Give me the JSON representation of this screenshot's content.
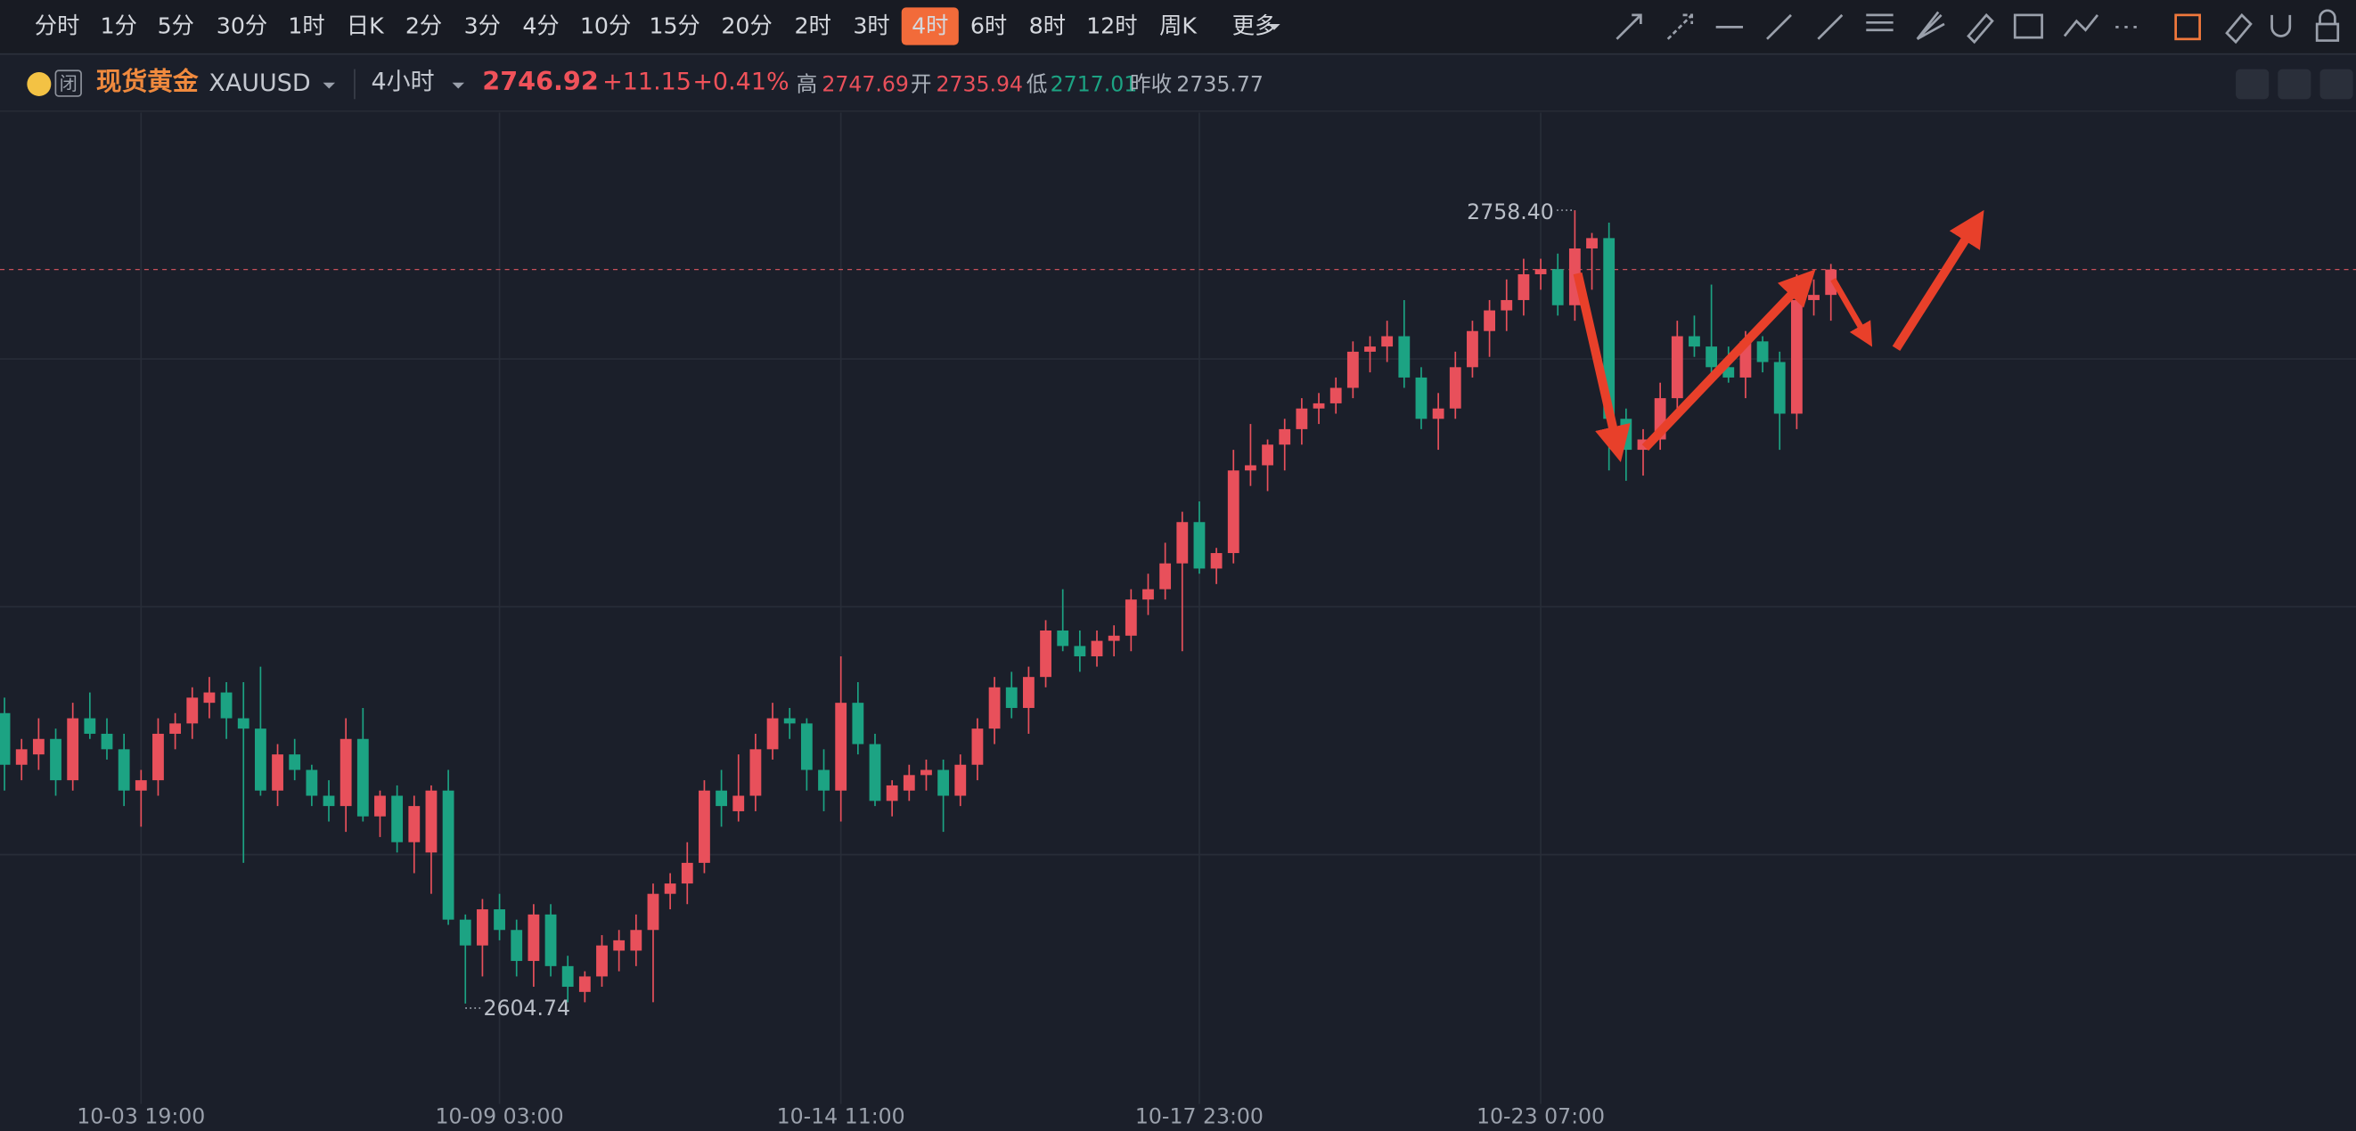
{
  "toolbar": {
    "periods": [
      {
        "label": "分时"
      },
      {
        "label": "1分"
      },
      {
        "label": "5分"
      },
      {
        "label": "30分"
      },
      {
        "label": "1时"
      },
      {
        "label": "日K"
      },
      {
        "label": "2分"
      },
      {
        "label": "3分"
      },
      {
        "label": "4分"
      },
      {
        "label": "10分"
      },
      {
        "label": "15分"
      },
      {
        "label": "20分"
      },
      {
        "label": "2时"
      },
      {
        "label": "3时"
      },
      {
        "label": "4时",
        "active": true
      },
      {
        "label": "6时"
      },
      {
        "label": "8时"
      },
      {
        "label": "12时"
      },
      {
        "label": "周K"
      }
    ],
    "more": "更多"
  },
  "header": {
    "market_status": "闭",
    "name": "现货黄金",
    "symbol": "XAUUSD",
    "period": "4小时",
    "price": "2746.92",
    "change": "+11.15",
    "change_pct": "+0.41%",
    "high_label": "高",
    "high": "2747.69",
    "open_label": "开",
    "open": "2735.94",
    "low_label": "低",
    "low": "2717.01",
    "prev_close_label": "昨收",
    "prev_close": "2735.77"
  },
  "chart_data": {
    "type": "candlestick",
    "up_color": "#e8505b",
    "down_color": "#1ca383",
    "grid": true,
    "ylim": [
      2585.3,
      2777.3
    ],
    "ygrid": [
      2729.6,
      2681.6,
      2633.6
    ],
    "categories": [
      null,
      null,
      null,
      null,
      null,
      null,
      null,
      null,
      "10-03 19:00",
      null,
      null,
      null,
      null,
      null,
      null,
      null,
      null,
      null,
      null,
      null,
      null,
      null,
      null,
      null,
      null,
      null,
      null,
      null,
      null,
      "10-09 03:00",
      null,
      null,
      null,
      null,
      null,
      null,
      null,
      null,
      null,
      null,
      null,
      null,
      null,
      null,
      null,
      null,
      null,
      null,
      null,
      "10-14 11:00",
      null,
      null,
      null,
      null,
      null,
      null,
      null,
      null,
      null,
      null,
      null,
      null,
      null,
      null,
      null,
      null,
      null,
      null,
      null,
      null,
      "10-17 23:00",
      null,
      null,
      null,
      null,
      null,
      null,
      null,
      null,
      null,
      null,
      null,
      null,
      null,
      null,
      null,
      null,
      null,
      null,
      null,
      "10-23 07:00",
      null,
      null,
      null,
      null,
      null,
      null,
      null,
      null,
      null,
      null,
      null,
      null,
      null,
      null,
      null,
      null,
      null
    ],
    "open": [
      2661,
      2651,
      2653,
      2656,
      2648,
      2660,
      2657,
      2654,
      2646,
      2648,
      2657,
      2659,
      2663,
      2665,
      2660,
      2658,
      2646,
      2653,
      2650,
      2645,
      2643,
      2656,
      2641,
      2645,
      2636,
      2634,
      2646,
      2621,
      2616,
      2623,
      2619,
      2613,
      2622,
      2612,
      2607,
      2610,
      2615,
      2615,
      2619,
      2626,
      2628,
      2632,
      2646,
      2642,
      2645,
      2654,
      2660,
      2659,
      2650,
      2646,
      2663,
      2655,
      2644,
      2646,
      2649,
      2650,
      2645,
      2651,
      2658,
      2666,
      2662,
      2668,
      2677,
      2674,
      2672,
      2675,
      2676,
      2683,
      2685,
      2690,
      2698,
      2689,
      2692,
      2708,
      2709,
      2713,
      2716,
      2720,
      2721,
      2724,
      2731,
      2732,
      2734,
      2726,
      2718,
      2720,
      2728,
      2735,
      2739,
      2741,
      2746,
      2747,
      2740,
      2751,
      2753,
      2718,
      2712,
      2714,
      2722,
      2734,
      2732,
      2728,
      2726,
      2733,
      2729,
      2719,
      2741,
      2742
    ],
    "high": [
      2664,
      2656,
      2660,
      2658,
      2663,
      2665,
      2660,
      2657,
      2650,
      2660,
      2661,
      2666,
      2668,
      2667,
      2667,
      2670,
      2655,
      2656,
      2651,
      2648,
      2660,
      2662,
      2646,
      2647,
      2645,
      2647,
      2650,
      2622,
      2625,
      2626,
      2621,
      2624,
      2624,
      2614,
      2611,
      2618,
      2619,
      2622,
      2628,
      2630,
      2636,
      2648,
      2650,
      2653,
      2657,
      2663,
      2662,
      2660,
      2654,
      2672,
      2667,
      2657,
      2648,
      2651,
      2652,
      2652,
      2653,
      2660,
      2668,
      2669,
      2670,
      2679,
      2685,
      2677,
      2677,
      2678,
      2685,
      2688,
      2694,
      2700,
      2702,
      2693,
      2712,
      2717,
      2714,
      2718,
      2722,
      2723,
      2726,
      2733,
      2734,
      2737,
      2741,
      2728,
      2723,
      2731,
      2737,
      2741,
      2745,
      2749,
      2749,
      2750,
      2758.4,
      2754,
      2756,
      2720,
      2716,
      2725,
      2737,
      2738,
      2744,
      2732,
      2735,
      2734,
      2731,
      2746,
      2745,
      2748
    ],
    "low": [
      2646,
      2648,
      2650,
      2645,
      2646,
      2656,
      2652,
      2643,
      2639,
      2645,
      2654,
      2656,
      2660,
      2656,
      2632,
      2645,
      2643,
      2648,
      2643,
      2640,
      2638,
      2640,
      2637,
      2634,
      2630,
      2626,
      2620,
      2604.74,
      2610,
      2617,
      2610,
      2608,
      2610,
      2605,
      2605,
      2608,
      2611,
      2612,
      2605,
      2623,
      2624,
      2630,
      2639,
      2640,
      2642,
      2652,
      2656,
      2646,
      2642,
      2640,
      2653,
      2643,
      2641,
      2644,
      2646,
      2638,
      2643,
      2648,
      2655,
      2660,
      2657,
      2666,
      2673,
      2669,
      2670,
      2672,
      2673,
      2680,
      2683,
      2673,
      2688,
      2686,
      2690,
      2705,
      2704,
      2708,
      2713,
      2717,
      2719,
      2722,
      2727,
      2729,
      2724,
      2716,
      2712,
      2718,
      2726,
      2730,
      2735,
      2738,
      2743,
      2738,
      2737,
      2743,
      2708,
      2706,
      2707,
      2712,
      2720,
      2730,
      2726,
      2725,
      2722,
      2727,
      2712,
      2716,
      2738,
      2737
    ],
    "close": [
      2651,
      2654,
      2656,
      2648,
      2660,
      2657,
      2654,
      2646,
      2648,
      2657,
      2659,
      2664,
      2665,
      2660,
      2658,
      2646,
      2653,
      2650,
      2645,
      2643,
      2656,
      2641,
      2645,
      2636,
      2643,
      2646,
      2621,
      2616,
      2623,
      2619,
      2613,
      2622,
      2612,
      2608,
      2610,
      2616,
      2617,
      2619,
      2626,
      2628,
      2632,
      2646,
      2643,
      2645,
      2654,
      2660,
      2659,
      2650,
      2646,
      2663,
      2655,
      2644,
      2647,
      2649,
      2650,
      2645,
      2651,
      2658,
      2666,
      2662,
      2668,
      2677,
      2674,
      2672,
      2675,
      2676,
      2683,
      2685,
      2690,
      2698,
      2689,
      2692,
      2708,
      2709,
      2713,
      2716,
      2720,
      2721,
      2724,
      2731,
      2732,
      2734,
      2726,
      2718,
      2720,
      2728,
      2735,
      2739,
      2741,
      2746,
      2747,
      2740,
      2751,
      2753,
      2718,
      2712,
      2714,
      2722,
      2734,
      2732,
      2728,
      2726,
      2733,
      2729,
      2719,
      2741,
      2742,
      2746.92
    ],
    "markers": [
      {
        "value": 2758.4,
        "label": "2758.40"
      },
      {
        "value": 2604.74,
        "label": "2604.74"
      }
    ]
  }
}
